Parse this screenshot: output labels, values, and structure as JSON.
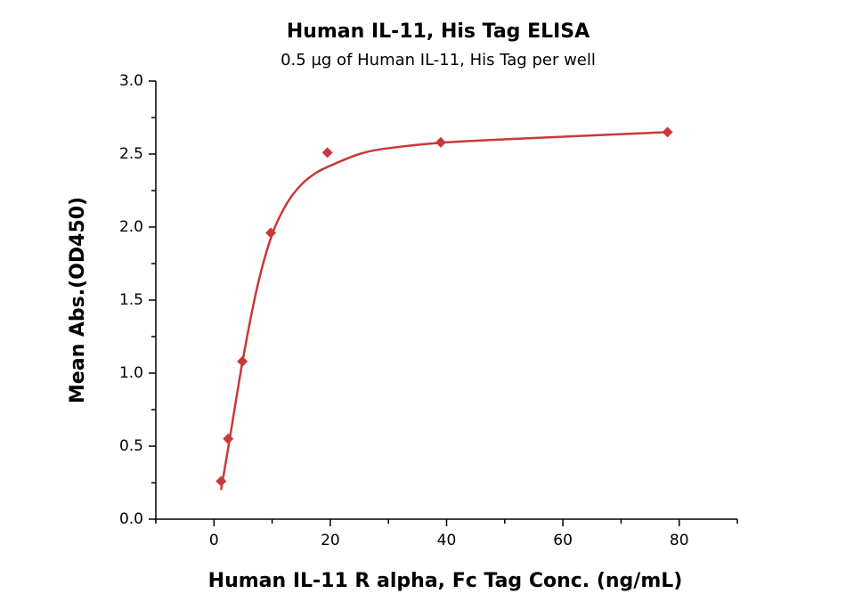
{
  "chart_data": {
    "type": "scatter",
    "title": "Human IL-11, His Tag ELISA",
    "subtitle": "0.5 µg of Human IL-11, His Tag per well",
    "x_label": "Human IL-11 R alpha, Fc Tag Conc. (ng/mL)",
    "y_label": "Mean Abs.(OD450)",
    "color": "#c8393a",
    "x": [
      1.22,
      2.44,
      4.88,
      9.77,
      19.5,
      39,
      78
    ],
    "values": [
      0.26,
      0.55,
      1.08,
      1.96,
      2.51,
      2.58,
      2.65
    ],
    "fit": {
      "x": [
        1.22,
        2.5,
        5,
        7.5,
        10,
        12.5,
        15,
        17.5,
        20,
        25,
        30,
        40,
        55,
        78
      ],
      "values": [
        0.2,
        0.5,
        1.1,
        1.6,
        1.95,
        2.16,
        2.29,
        2.37,
        2.42,
        2.5,
        2.54,
        2.58,
        2.61,
        2.65
      ]
    },
    "xlim": [
      -10,
      90
    ],
    "xticks": [
      0,
      20,
      40,
      60,
      80
    ],
    "xminorticks": [
      -10,
      10,
      30,
      50,
      70,
      90
    ],
    "ylim": [
      0,
      3
    ],
    "yticks": [
      {
        "value": 0,
        "label": "0.0"
      },
      0.5,
      {
        "value": 1,
        "label": "1.0"
      },
      1.5,
      {
        "value": 2,
        "label": "2.0"
      },
      2.5,
      {
        "value": 3,
        "label": "3.0"
      }
    ],
    "yminorticks": [
      0.25,
      0.75,
      1.25,
      1.75,
      2.25,
      2.75
    ]
  }
}
